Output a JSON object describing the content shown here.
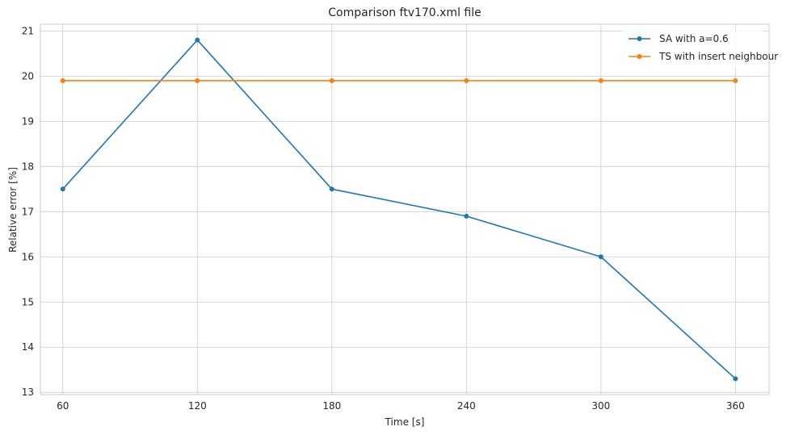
{
  "chart_data": {
    "type": "line",
    "title": "Comparison ftv170.xml file",
    "xlabel": "Time [s]",
    "ylabel": "Relative error [%]",
    "x": [
      60,
      120,
      180,
      240,
      300,
      360
    ],
    "xticks": [
      "60",
      "120",
      "180",
      "240",
      "300",
      "360"
    ],
    "yticks": [
      "13",
      "14",
      "15",
      "16",
      "17",
      "18",
      "19",
      "20",
      "21"
    ],
    "xlim": [
      50,
      375
    ],
    "ylim": [
      12.95,
      21.15
    ],
    "grid": true,
    "legend_position": "top-right",
    "series": [
      {
        "name": "SA with a=0.6",
        "color": "#1f77b4",
        "marker": "circle",
        "values": [
          17.5,
          20.8,
          17.5,
          16.9,
          16.0,
          13.3
        ]
      },
      {
        "name": "TS with insert neighbour",
        "color": "#ff7f0e",
        "marker": "circle",
        "values": [
          19.9,
          19.9,
          19.9,
          19.9,
          19.9,
          19.9
        ]
      }
    ]
  }
}
